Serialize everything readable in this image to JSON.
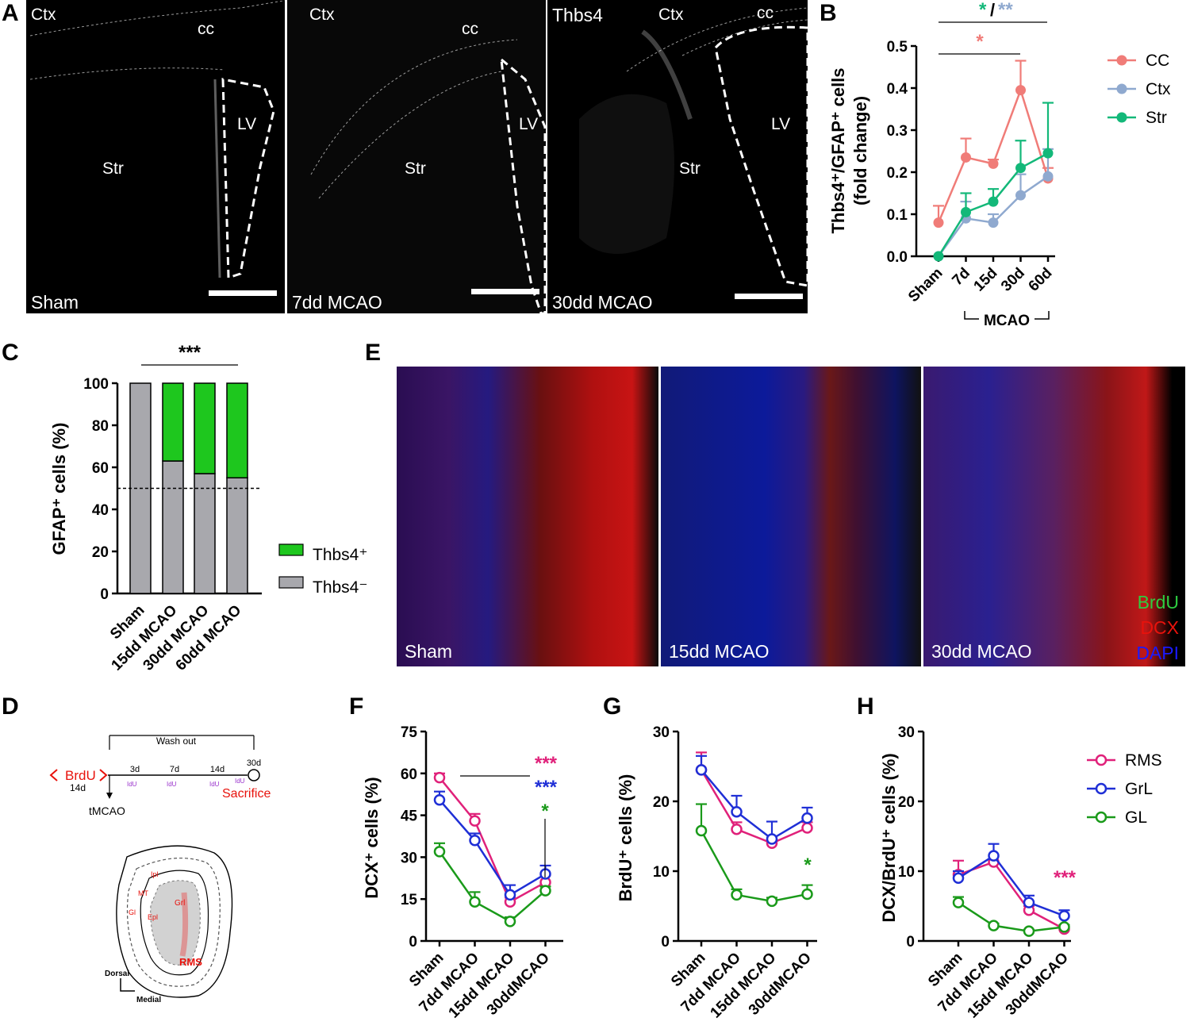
{
  "panels": {
    "A": "A",
    "B": "B",
    "C": "C",
    "D": "D",
    "E": "E",
    "F": "F",
    "G": "G",
    "H": "H"
  },
  "panelA": {
    "images": [
      {
        "condition": "Sham",
        "regions": {
          "ctx": "Ctx",
          "cc": "cc",
          "str": "Str",
          "lv": "LV"
        }
      },
      {
        "condition": "7dd MCAO",
        "regions": {
          "ctx": "Ctx",
          "cc": "cc",
          "str": "Str",
          "lv": "LV"
        }
      },
      {
        "condition": "30dd MCAO",
        "marker": "Thbs4",
        "regions": {
          "ctx": "Ctx",
          "cc": "cc",
          "str": "Str",
          "lv": "LV"
        }
      }
    ]
  },
  "panelE": {
    "images": [
      {
        "condition": "Sham"
      },
      {
        "condition": "15dd MCAO"
      },
      {
        "condition": "30dd MCAO"
      }
    ],
    "channels": [
      {
        "name": "BrdU",
        "color": "#2ecc40"
      },
      {
        "name": "DCX",
        "color": "#e8120c"
      },
      {
        "name": "DAPI",
        "color": "#1a1aff"
      }
    ]
  },
  "panelD": {
    "wash_out": "Wash out",
    "brdu": "BrdU",
    "brdu_days": "14d",
    "days": [
      "3d",
      "7d",
      "14d",
      "30d"
    ],
    "idu": "IdU",
    "sacrifice": "Sacrifice",
    "tmcao": "tMCAO",
    "regions": {
      "ipl": "Ipl",
      "mt": "MT",
      "gl": "Gl",
      "epl": "Epl",
      "grl": "Grl",
      "rms": "RMS"
    },
    "axes": {
      "dorsal": "Dorsal",
      "medial": "Medial"
    }
  },
  "chart_data": [
    {
      "id": "B",
      "type": "line",
      "categories": [
        "Sham",
        "7d",
        "15d",
        "30d",
        "60d"
      ],
      "group_label": "MCAO",
      "ylabel": "Thbs4⁺/GFAP⁺ cells (fold change)",
      "ylabel_line1": "Thbs4⁺/GFAP⁺ cells",
      "ylabel_line2": "(fold change)",
      "ylim": [
        0,
        0.5
      ],
      "yticks": [
        "0.0",
        "0.1",
        "0.2",
        "0.3",
        "0.4",
        "0.5"
      ],
      "series": [
        {
          "name": "CC",
          "color": "#f07c78",
          "values": [
            0.08,
            0.235,
            0.22,
            0.395,
            0.185
          ],
          "err": [
            0.04,
            0.045,
            0.01,
            0.07,
            0.025
          ]
        },
        {
          "name": "Ctx",
          "color": "#8fa9cf",
          "values": [
            0.0,
            0.09,
            0.08,
            0.145,
            0.19
          ],
          "err": [
            0,
            0.04,
            0.02,
            0.05,
            0.065
          ]
        },
        {
          "name": "Str",
          "color": "#13b879",
          "values": [
            0.0,
            0.105,
            0.13,
            0.21,
            0.245
          ],
          "err": [
            0,
            0.045,
            0.03,
            0.065,
            0.12
          ]
        }
      ],
      "significance": [
        {
          "text": "*",
          "color": "#f07c78",
          "from": "Sham",
          "to": "30d"
        },
        {
          "text_a": "*",
          "color_a": "#13b879",
          "sep": "/",
          "text_b": "**",
          "color_b": "#8fa9cf",
          "from": "Sham",
          "to": "60d"
        }
      ]
    },
    {
      "id": "C",
      "type": "bar",
      "stacked": true,
      "categories": [
        "Sham",
        "15dd MCAO",
        "30dd MCAO",
        "60dd MCAO"
      ],
      "ylabel": "GFAP⁺ cells (%)",
      "ylim": [
        0,
        100
      ],
      "yticks": [
        "0",
        "20",
        "40",
        "60",
        "80",
        "100"
      ],
      "reference_line": 50,
      "series": [
        {
          "name": "Thbs4⁻",
          "color": "#a8a8ad",
          "values": [
            100,
            63,
            57,
            55
          ]
        },
        {
          "name": "Thbs4⁺",
          "color": "#1ec71e",
          "values": [
            0,
            37,
            43,
            45
          ]
        }
      ],
      "legend": [
        "Thbs4⁺",
        "Thbs4⁻"
      ],
      "significance": "***"
    },
    {
      "id": "F",
      "type": "line",
      "categories": [
        "Sham",
        "7dd MCAO",
        "15dd MCAO",
        "30ddMCAO"
      ],
      "ylabel": "DCX⁺ cells (%)",
      "ylim": [
        0,
        75
      ],
      "yticks": [
        "0",
        "15",
        "30",
        "45",
        "60",
        "75"
      ],
      "series": [
        {
          "name": "RMS",
          "color": "#e0217a",
          "values": [
            58.5,
            43,
            14,
            21
          ],
          "err": [
            1.5,
            2.5,
            1.5,
            2.5
          ]
        },
        {
          "name": "GrL",
          "color": "#1f2fd6",
          "values": [
            50.5,
            36,
            16.5,
            24
          ],
          "err": [
            3,
            2.5,
            3.5,
            3
          ]
        },
        {
          "name": "GL",
          "color": "#1a9a1a",
          "values": [
            32,
            14,
            7,
            18
          ],
          "err": [
            3,
            3.5,
            1.5,
            1.5
          ]
        }
      ],
      "significance": [
        {
          "text": "***",
          "color": "#e0217a"
        },
        {
          "text": "***",
          "color": "#1f2fd6"
        },
        {
          "text": "*",
          "color": "#1a9a1a"
        }
      ]
    },
    {
      "id": "G",
      "type": "line",
      "categories": [
        "Sham",
        "7dd MCAO",
        "15dd MCAO",
        "30ddMCAO"
      ],
      "ylabel": "BrdU⁺ cells (%)",
      "ylim": [
        0,
        30
      ],
      "yticks": [
        "0",
        "10",
        "20",
        "30"
      ],
      "series": [
        {
          "name": "RMS",
          "color": "#e0217a",
          "values": [
            24.5,
            16,
            14,
            16.2
          ],
          "err": [
            2.5,
            1,
            0.8,
            0.8
          ]
        },
        {
          "name": "GrL",
          "color": "#1f2fd6",
          "values": [
            24.5,
            18.5,
            14.6,
            17.6
          ],
          "err": [
            2,
            2.3,
            2.5,
            1.5
          ]
        },
        {
          "name": "GL",
          "color": "#1a9a1a",
          "values": [
            15.8,
            6.6,
            5.7,
            6.7
          ],
          "err": [
            3.8,
            0.8,
            0.5,
            1.3
          ]
        }
      ],
      "significance": [
        {
          "text": "*",
          "color": "#1a9a1a"
        }
      ]
    },
    {
      "id": "H",
      "type": "line",
      "categories": [
        "Sham",
        "7dd MCAO",
        "15dd MCAO",
        "30ddMCAO"
      ],
      "ylabel": "DCX/BrdU⁺ cells (%)",
      "ylim": [
        0,
        30
      ],
      "yticks": [
        "0",
        "10",
        "20",
        "30"
      ],
      "series": [
        {
          "name": "RMS",
          "color": "#e0217a",
          "values": [
            9.5,
            11.3,
            4.4,
            1.7
          ],
          "err": [
            2,
            1,
            0.6,
            0.5
          ]
        },
        {
          "name": "GrL",
          "color": "#1f2fd6",
          "values": [
            9.0,
            12.2,
            5.5,
            3.6
          ],
          "err": [
            1,
            1.7,
            1,
            0.8
          ]
        },
        {
          "name": "GL",
          "color": "#1a9a1a",
          "values": [
            5.5,
            2.2,
            1.4,
            2.0
          ],
          "err": [
            0.8,
            0.3,
            0.2,
            0.3
          ]
        }
      ],
      "legend": [
        "RMS",
        "GrL",
        "GL"
      ],
      "significance": [
        {
          "text": "***",
          "color": "#e0217a"
        }
      ]
    }
  ]
}
